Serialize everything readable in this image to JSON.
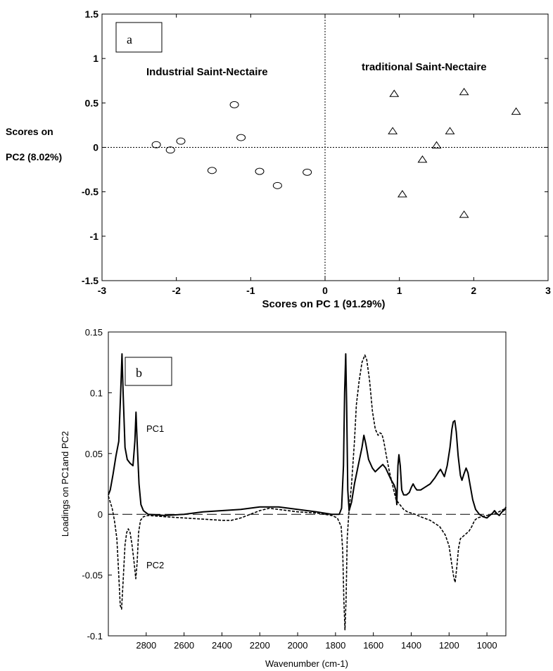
{
  "chart_data": [
    {
      "type": "scatter",
      "panel_label": "a",
      "xlabel": "Scores on PC 1 (91.29%)",
      "ylabel_line1": "Scores on",
      "ylabel_line2": "PC2 (8.02%)",
      "xlim": [
        -3,
        3
      ],
      "ylim": [
        -1.5,
        1.5
      ],
      "xticks": [
        "-3",
        "-2",
        "-1",
        "0",
        "1",
        "2",
        "3"
      ],
      "yticks": [
        "1.5",
        "1",
        "0.5",
        "0",
        "-0.5",
        "-1",
        "-1.5"
      ],
      "annotations": [
        "Industrial Saint-Nectaire",
        "traditional Saint-Nectaire"
      ],
      "series": [
        {
          "marker": "circle",
          "points": [
            [
              -2.27,
              0.03
            ],
            [
              -2.08,
              -0.03
            ],
            [
              -1.94,
              0.07
            ],
            [
              -1.52,
              -0.26
            ],
            [
              -1.22,
              0.48
            ],
            [
              -1.13,
              0.11
            ],
            [
              -0.88,
              -0.27
            ],
            [
              -0.64,
              -0.43
            ],
            [
              -0.24,
              -0.28
            ]
          ]
        },
        {
          "marker": "triangle",
          "points": [
            [
              0.93,
              0.6
            ],
            [
              1.87,
              0.62
            ],
            [
              2.57,
              0.4
            ],
            [
              0.91,
              0.18
            ],
            [
              1.68,
              0.18
            ],
            [
              1.5,
              0.02
            ],
            [
              1.31,
              -0.14
            ],
            [
              1.04,
              -0.53
            ],
            [
              1.87,
              -0.76
            ]
          ]
        }
      ],
      "grid": false,
      "zero_lines": true
    },
    {
      "type": "line",
      "panel_label": "b",
      "xlabel": "Wavenumber (cm-1)",
      "ylabel": "Loadings on PC1and PC2",
      "xlim": [
        3000,
        900
      ],
      "ylim": [
        -0.1,
        0.15
      ],
      "x_reversed": true,
      "xticks": [
        "2800",
        "2600",
        "2400",
        "2200",
        "2000",
        "1800",
        "1600",
        "1400",
        "1200",
        "1000"
      ],
      "yticks": [
        "0.15",
        "0.1",
        "0.05",
        "0",
        "-0.05",
        "-0.1"
      ],
      "series": [
        {
          "name": "PC1",
          "style": "solid",
          "points": [
            [
              3000,
              0.016
            ],
            [
              2990,
              0.02
            ],
            [
              2975,
              0.033
            ],
            [
              2960,
              0.048
            ],
            [
              2945,
              0.06
            ],
            [
              2935,
              0.1
            ],
            [
              2928,
              0.132
            ],
            [
              2922,
              0.1
            ],
            [
              2912,
              0.055
            ],
            [
              2900,
              0.045
            ],
            [
              2885,
              0.042
            ],
            [
              2870,
              0.04
            ],
            [
              2860,
              0.06
            ],
            [
              2854,
              0.084
            ],
            [
              2848,
              0.06
            ],
            [
              2838,
              0.025
            ],
            [
              2828,
              0.008
            ],
            [
              2815,
              0.003
            ],
            [
              2790,
              0.0
            ],
            [
              2700,
              -0.001
            ],
            [
              2600,
              0.0
            ],
            [
              2500,
              0.002
            ],
            [
              2400,
              0.003
            ],
            [
              2300,
              0.004
            ],
            [
              2200,
              0.006
            ],
            [
              2150,
              0.006
            ],
            [
              2100,
              0.006
            ],
            [
              2000,
              0.004
            ],
            [
              1900,
              0.002
            ],
            [
              1820,
              0.0
            ],
            [
              1780,
              0.0
            ],
            [
              1768,
              0.005
            ],
            [
              1758,
              0.04
            ],
            [
              1752,
              0.1
            ],
            [
              1746,
              0.132
            ],
            [
              1741,
              0.09
            ],
            [
              1735,
              0.02
            ],
            [
              1728,
              0.003
            ],
            [
              1715,
              0.01
            ],
            [
              1700,
              0.025
            ],
            [
              1680,
              0.04
            ],
            [
              1660,
              0.055
            ],
            [
              1650,
              0.065
            ],
            [
              1640,
              0.058
            ],
            [
              1625,
              0.045
            ],
            [
              1605,
              0.038
            ],
            [
              1590,
              0.035
            ],
            [
              1570,
              0.038
            ],
            [
              1550,
              0.041
            ],
            [
              1535,
              0.038
            ],
            [
              1520,
              0.033
            ],
            [
              1505,
              0.028
            ],
            [
              1490,
              0.024
            ],
            [
              1482,
              0.02
            ],
            [
              1476,
              0.008
            ],
            [
              1470,
              0.04
            ],
            [
              1465,
              0.049
            ],
            [
              1458,
              0.04
            ],
            [
              1450,
              0.02
            ],
            [
              1440,
              0.016
            ],
            [
              1425,
              0.016
            ],
            [
              1410,
              0.018
            ],
            [
              1400,
              0.022
            ],
            [
              1390,
              0.025
            ],
            [
              1380,
              0.022
            ],
            [
              1370,
              0.02
            ],
            [
              1350,
              0.02
            ],
            [
              1330,
              0.022
            ],
            [
              1300,
              0.025
            ],
            [
              1275,
              0.03
            ],
            [
              1255,
              0.035
            ],
            [
              1245,
              0.037
            ],
            [
              1235,
              0.034
            ],
            [
              1225,
              0.031
            ],
            [
              1210,
              0.04
            ],
            [
              1195,
              0.055
            ],
            [
              1185,
              0.07
            ],
            [
              1178,
              0.076
            ],
            [
              1170,
              0.077
            ],
            [
              1162,
              0.068
            ],
            [
              1152,
              0.048
            ],
            [
              1140,
              0.032
            ],
            [
              1132,
              0.028
            ],
            [
              1122,
              0.033
            ],
            [
              1110,
              0.038
            ],
            [
              1100,
              0.034
            ],
            [
              1090,
              0.025
            ],
            [
              1075,
              0.012
            ],
            [
              1060,
              0.004
            ],
            [
              1040,
              0.0
            ],
            [
              1020,
              -0.002
            ],
            [
              1000,
              -0.003
            ],
            [
              985,
              -0.001
            ],
            [
              970,
              0.001
            ],
            [
              960,
              0.003
            ],
            [
              950,
              0.001
            ],
            [
              935,
              -0.001
            ],
            [
              920,
              0.002
            ],
            [
              905,
              0.004
            ],
            [
              900,
              0.006
            ]
          ]
        },
        {
          "name": "PC2",
          "style": "dashed",
          "points": [
            [
              3000,
              0.015
            ],
            [
              2990,
              0.01
            ],
            [
              2980,
              0.005
            ],
            [
              2968,
              -0.005
            ],
            [
              2955,
              -0.02
            ],
            [
              2945,
              -0.05
            ],
            [
              2937,
              -0.075
            ],
            [
              2930,
              -0.078
            ],
            [
              2922,
              -0.055
            ],
            [
              2912,
              -0.025
            ],
            [
              2903,
              -0.015
            ],
            [
              2895,
              -0.012
            ],
            [
              2885,
              -0.015
            ],
            [
              2875,
              -0.025
            ],
            [
              2865,
              -0.038
            ],
            [
              2855,
              -0.053
            ],
            [
              2848,
              -0.04
            ],
            [
              2840,
              -0.015
            ],
            [
              2830,
              -0.005
            ],
            [
              2815,
              -0.002
            ],
            [
              2790,
              -0.001
            ],
            [
              2700,
              -0.002
            ],
            [
              2600,
              -0.003
            ],
            [
              2500,
              -0.004
            ],
            [
              2400,
              -0.005
            ],
            [
              2350,
              -0.005
            ],
            [
              2300,
              -0.003
            ],
            [
              2200,
              0.003
            ],
            [
              2150,
              0.005
            ],
            [
              2100,
              0.004
            ],
            [
              2000,
              0.002
            ],
            [
              1900,
              0.001
            ],
            [
              1820,
              -0.001
            ],
            [
              1790,
              -0.003
            ],
            [
              1770,
              -0.01
            ],
            [
              1762,
              -0.03
            ],
            [
              1756,
              -0.07
            ],
            [
              1750,
              -0.095
            ],
            [
              1744,
              -0.07
            ],
            [
              1738,
              -0.02
            ],
            [
              1730,
              0.0
            ],
            [
              1715,
              0.025
            ],
            [
              1700,
              0.06
            ],
            [
              1690,
              0.09
            ],
            [
              1675,
              0.11
            ],
            [
              1660,
              0.125
            ],
            [
              1645,
              0.131
            ],
            [
              1635,
              0.127
            ],
            [
              1620,
              0.11
            ],
            [
              1605,
              0.085
            ],
            [
              1590,
              0.07
            ],
            [
              1575,
              0.065
            ],
            [
              1565,
              0.067
            ],
            [
              1555,
              0.066
            ],
            [
              1545,
              0.06
            ],
            [
              1530,
              0.047
            ],
            [
              1515,
              0.035
            ],
            [
              1500,
              0.025
            ],
            [
              1490,
              0.018
            ],
            [
              1480,
              0.012
            ],
            [
              1470,
              0.01
            ],
            [
              1460,
              0.008
            ],
            [
              1450,
              0.006
            ],
            [
              1440,
              0.004
            ],
            [
              1420,
              0.002
            ],
            [
              1400,
              0.001
            ],
            [
              1380,
              0.0
            ],
            [
              1350,
              -0.002
            ],
            [
              1300,
              -0.005
            ],
            [
              1250,
              -0.01
            ],
            [
              1220,
              -0.017
            ],
            [
              1200,
              -0.026
            ],
            [
              1185,
              -0.042
            ],
            [
              1175,
              -0.052
            ],
            [
              1168,
              -0.056
            ],
            [
              1160,
              -0.045
            ],
            [
              1150,
              -0.028
            ],
            [
              1140,
              -0.02
            ],
            [
              1125,
              -0.018
            ],
            [
              1110,
              -0.016
            ],
            [
              1095,
              -0.014
            ],
            [
              1080,
              -0.01
            ],
            [
              1065,
              -0.005
            ],
            [
              1050,
              -0.003
            ],
            [
              1030,
              -0.002
            ],
            [
              1000,
              -0.001
            ],
            [
              975,
              0.0
            ],
            [
              950,
              0.001
            ],
            [
              925,
              0.003
            ],
            [
              900,
              0.005
            ]
          ]
        }
      ],
      "series_labels": [
        "PC1",
        "PC2"
      ],
      "reference_line": 0,
      "grid": false
    }
  ]
}
